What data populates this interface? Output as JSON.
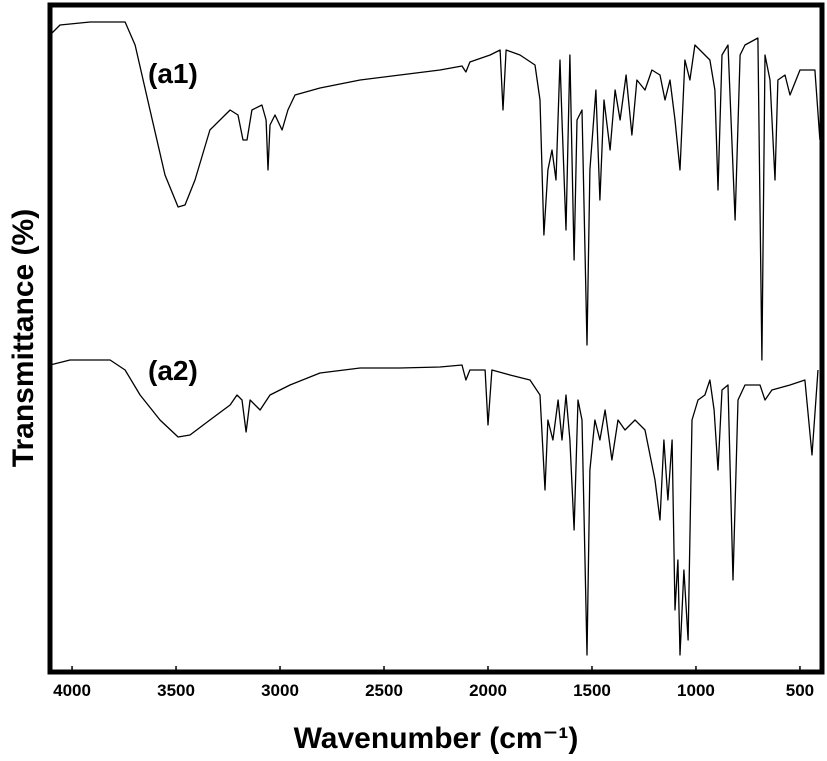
{
  "chart_data": {
    "type": "line",
    "xlabel": "Wavenumber (cm⁻¹)",
    "ylabel": "Transmittance (%)",
    "annotations": [
      "(a1)",
      "(a2)"
    ],
    "xlim": [
      4106,
      394
    ],
    "xticks": [
      4000,
      3500,
      3000,
      2500,
      2000,
      1500,
      1000,
      500
    ],
    "ylim": [
      0,
      667
    ],
    "series": [
      {
        "name": "(a1)",
        "color": "#000000",
        "x": [
          4106,
          4058,
          3913,
          3745,
          3697,
          3625,
          3553,
          3490,
          3457,
          3409,
          3337,
          3240,
          3202,
          3178,
          3159,
          3135,
          3087,
          3067,
          3058,
          3048,
          3024,
          2990,
          2962,
          2928,
          2808,
          2615,
          2423,
          2231,
          2125,
          2106,
          2087,
          1990,
          1942,
          1928,
          1913,
          1846,
          1774,
          1750,
          1731,
          1712,
          1692,
          1673,
          1654,
          1644,
          1625,
          1606,
          1586,
          1572,
          1548,
          1524,
          1510,
          1481,
          1462,
          1442,
          1413,
          1389,
          1365,
          1336,
          1308,
          1284,
          1245,
          1212,
          1173,
          1149,
          1125,
          1101,
          1077,
          1053,
          1029,
          1005,
          957,
          933,
          909,
          894,
          875,
          846,
          812,
          788,
          764,
          702,
          683,
          668,
          644,
          620,
          606,
          572,
          548,
          500,
          428,
          404
        ],
        "values": [
          637,
          647,
          650,
          650,
          627,
          562,
          497,
          465,
          467,
          492,
          542,
          562,
          557,
          532,
          532,
          562,
          567,
          552,
          502,
          547,
          557,
          542,
          562,
          577,
          584,
          592,
          597,
          602,
          606,
          600,
          610,
          617,
          622,
          562,
          622,
          617,
          607,
          572,
          437,
          502,
          522,
          492,
          612,
          552,
          442,
          617,
          412,
          552,
          562,
          327,
          502,
          582,
          472,
          572,
          522,
          582,
          552,
          597,
          537,
          592,
          582,
          602,
          597,
          572,
          592,
          552,
          502,
          612,
          592,
          627,
          617,
          612,
          582,
          482,
          617,
          627,
          452,
          617,
          627,
          634,
          312,
          617,
          592,
          492,
          592,
          597,
          577,
          602,
          602,
          532
        ]
      },
      {
        "name": "(a2)",
        "color": "#000000",
        "x": [
          4106,
          4010,
          3817,
          3745,
          3673,
          3577,
          3490,
          3433,
          3337,
          3240,
          3207,
          3183,
          3163,
          3144,
          3096,
          3048,
          2952,
          2808,
          2615,
          2423,
          2231,
          2125,
          2106,
          2087,
          2014,
          2000,
          1981,
          1894,
          1798,
          1750,
          1726,
          1712,
          1688,
          1663,
          1644,
          1625,
          1606,
          1586,
          1567,
          1548,
          1524,
          1510,
          1486,
          1462,
          1437,
          1404,
          1375,
          1341,
          1293,
          1245,
          1197,
          1173,
          1154,
          1135,
          1115,
          1101,
          1087,
          1077,
          1058,
          1038,
          1019,
          990,
          957,
          933,
          913,
          894,
          875,
          846,
          822,
          798,
          764,
          692,
          668,
          635,
          548,
          476,
          442,
          413
        ],
        "values": [
          307,
          312,
          312,
          302,
          277,
          252,
          235,
          237,
          252,
          267,
          277,
          272,
          240,
          272,
          262,
          277,
          287,
          299,
          304,
          304,
          305,
          307,
          292,
          302,
          302,
          247,
          302,
          297,
          292,
          277,
          182,
          252,
          232,
          272,
          232,
          277,
          232,
          142,
          272,
          252,
          17,
          202,
          252,
          232,
          262,
          212,
          252,
          242,
          252,
          242,
          192,
          152,
          232,
          172,
          232,
          62,
          112,
          17,
          102,
          32,
          252,
          272,
          277,
          292,
          262,
          202,
          282,
          287,
          92,
          272,
          287,
          287,
          272,
          282,
          287,
          292,
          217,
          302
        ]
      }
    ]
  }
}
